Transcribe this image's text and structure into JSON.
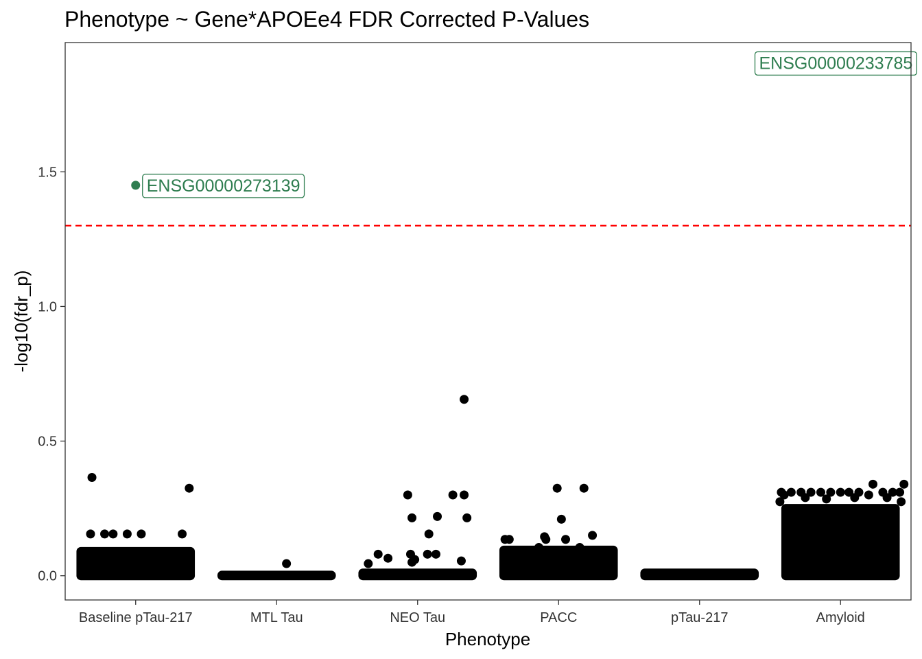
{
  "chart_data": {
    "type": "scatter",
    "title": "Phenotype ~ Gene*APOEe4 FDR Corrected P-Values",
    "xlabel": "Phenotype",
    "ylabel": "-log10(fdr_p)",
    "ylim": [
      -0.09,
      1.98
    ],
    "yticks": [
      0.0,
      0.5,
      1.0,
      1.5
    ],
    "ytick_labels": [
      "0.0",
      "0.5",
      "1.0",
      "1.5"
    ],
    "categories": [
      "Baseline pTau-217",
      "MTL Tau",
      "NEO Tau",
      "PACC",
      "pTau-217",
      "Amyloid"
    ],
    "grid": false,
    "threshold": {
      "value": 1.3,
      "color": "#ff0000",
      "style": "dashed"
    },
    "point_color": "#000000",
    "highlight_color": "#2e7d4f",
    "bands": [
      {
        "category": "Baseline pTau-217",
        "min": 0.0,
        "max": 0.09
      },
      {
        "category": "MTL Tau",
        "min": 0.0,
        "max": 0.002
      },
      {
        "category": "NEO Tau",
        "min": 0.0,
        "max": 0.01
      },
      {
        "category": "PACC",
        "min": 0.0,
        "max": 0.095
      },
      {
        "category": "pTau-217",
        "min": 0.0,
        "max": 0.01
      },
      {
        "category": "Amyloid",
        "min": 0.0,
        "max": 0.25
      }
    ],
    "series": [
      {
        "category": "Baseline pTau-217",
        "points": [
          {
            "offset": -0.31,
            "y": 0.365
          },
          {
            "offset": 0.38,
            "y": 0.325
          },
          {
            "offset": -0.32,
            "y": 0.155
          },
          {
            "offset": -0.22,
            "y": 0.155
          },
          {
            "offset": -0.16,
            "y": 0.155
          },
          {
            "offset": -0.06,
            "y": 0.155
          },
          {
            "offset": 0.04,
            "y": 0.155
          },
          {
            "offset": 0.33,
            "y": 0.155
          }
        ]
      },
      {
        "category": "MTL Tau",
        "points": [
          {
            "offset": 0.07,
            "y": 0.045
          }
        ]
      },
      {
        "category": "NEO Tau",
        "points": [
          {
            "offset": 0.33,
            "y": 0.655
          },
          {
            "offset": -0.07,
            "y": 0.3
          },
          {
            "offset": 0.25,
            "y": 0.3
          },
          {
            "offset": 0.33,
            "y": 0.3
          },
          {
            "offset": -0.04,
            "y": 0.215
          },
          {
            "offset": 0.14,
            "y": 0.22
          },
          {
            "offset": 0.35,
            "y": 0.215
          },
          {
            "offset": 0.08,
            "y": 0.155
          },
          {
            "offset": -0.28,
            "y": 0.08
          },
          {
            "offset": -0.21,
            "y": 0.065
          },
          {
            "offset": -0.05,
            "y": 0.08
          },
          {
            "offset": 0.07,
            "y": 0.08
          },
          {
            "offset": -0.04,
            "y": 0.05
          },
          {
            "offset": -0.35,
            "y": 0.045
          },
          {
            "offset": 0.31,
            "y": 0.055
          },
          {
            "offset": 0.13,
            "y": 0.08
          },
          {
            "offset": -0.02,
            "y": 0.06
          }
        ]
      },
      {
        "category": "PACC",
        "points": [
          {
            "offset": -0.01,
            "y": 0.325
          },
          {
            "offset": 0.18,
            "y": 0.325
          },
          {
            "offset": 0.02,
            "y": 0.21
          },
          {
            "offset": -0.38,
            "y": 0.135
          },
          {
            "offset": -0.35,
            "y": 0.135
          },
          {
            "offset": -0.1,
            "y": 0.145
          },
          {
            "offset": -0.09,
            "y": 0.135
          },
          {
            "offset": 0.05,
            "y": 0.135
          },
          {
            "offset": 0.24,
            "y": 0.15
          },
          {
            "offset": -0.14,
            "y": 0.105
          },
          {
            "offset": 0.15,
            "y": 0.105
          }
        ]
      },
      {
        "category": "pTau-217",
        "points": []
      },
      {
        "category": "Amyloid",
        "points": [
          {
            "offset": 0.23,
            "y": 0.34
          },
          {
            "offset": 0.45,
            "y": 0.34
          },
          {
            "offset": -0.42,
            "y": 0.31
          },
          {
            "offset": -0.35,
            "y": 0.31
          },
          {
            "offset": -0.28,
            "y": 0.31
          },
          {
            "offset": -0.21,
            "y": 0.31
          },
          {
            "offset": -0.14,
            "y": 0.31
          },
          {
            "offset": -0.07,
            "y": 0.31
          },
          {
            "offset": 0.0,
            "y": 0.31
          },
          {
            "offset": 0.06,
            "y": 0.31
          },
          {
            "offset": 0.13,
            "y": 0.31
          },
          {
            "offset": 0.3,
            "y": 0.31
          },
          {
            "offset": 0.37,
            "y": 0.31
          },
          {
            "offset": 0.42,
            "y": 0.31
          },
          {
            "offset": -0.4,
            "y": 0.3
          },
          {
            "offset": 0.2,
            "y": 0.3
          },
          {
            "offset": -0.25,
            "y": 0.29
          },
          {
            "offset": 0.1,
            "y": 0.29
          },
          {
            "offset": -0.43,
            "y": 0.275
          },
          {
            "offset": 0.43,
            "y": 0.275
          },
          {
            "offset": -0.1,
            "y": 0.285
          },
          {
            "offset": 0.33,
            "y": 0.29
          }
        ]
      }
    ],
    "highlights": [
      {
        "category": "Baseline pTau-217",
        "offset": 0.0,
        "y": 1.45,
        "label": "ENSG00000273139",
        "label_anchor": "right-of-point"
      },
      {
        "category": "Amyloid",
        "y": 1.905,
        "label": "ENSG00000233785",
        "label_anchor": "left-of-category"
      }
    ]
  }
}
